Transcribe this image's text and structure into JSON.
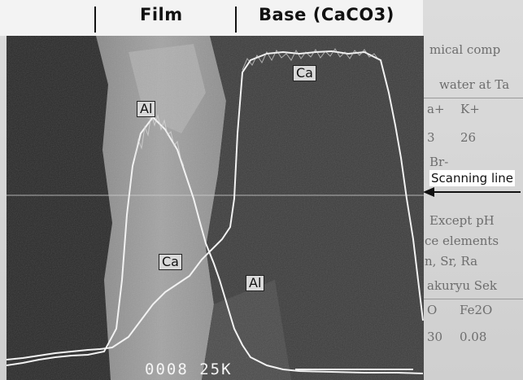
{
  "header": {
    "film_label": "Film",
    "base_label": "Base (CaCO3)"
  },
  "overlay": {
    "al_top": "Al",
    "ca_top": "Ca",
    "ca_bottom": "Ca",
    "al_bottom": "Al"
  },
  "annotation": {
    "scanning_line": "Scanning line"
  },
  "footer": {
    "code": "0008 25K"
  },
  "background_text": [
    "mical comp",
    "water at Ta",
    "a+",
    "K+",
    "3",
    "26",
    "Br-",
    "Except pH",
    "ce elements",
    "n, Sr, Ra",
    "akuryu Sek",
    "O",
    "Fe2O",
    "30",
    "0.08"
  ],
  "colors": {
    "trace": "#f2f2f2",
    "sem_dark": "#2d2d2d",
    "sem_mid": "#7a7a7a",
    "header_bg": "#f3f3f3"
  }
}
